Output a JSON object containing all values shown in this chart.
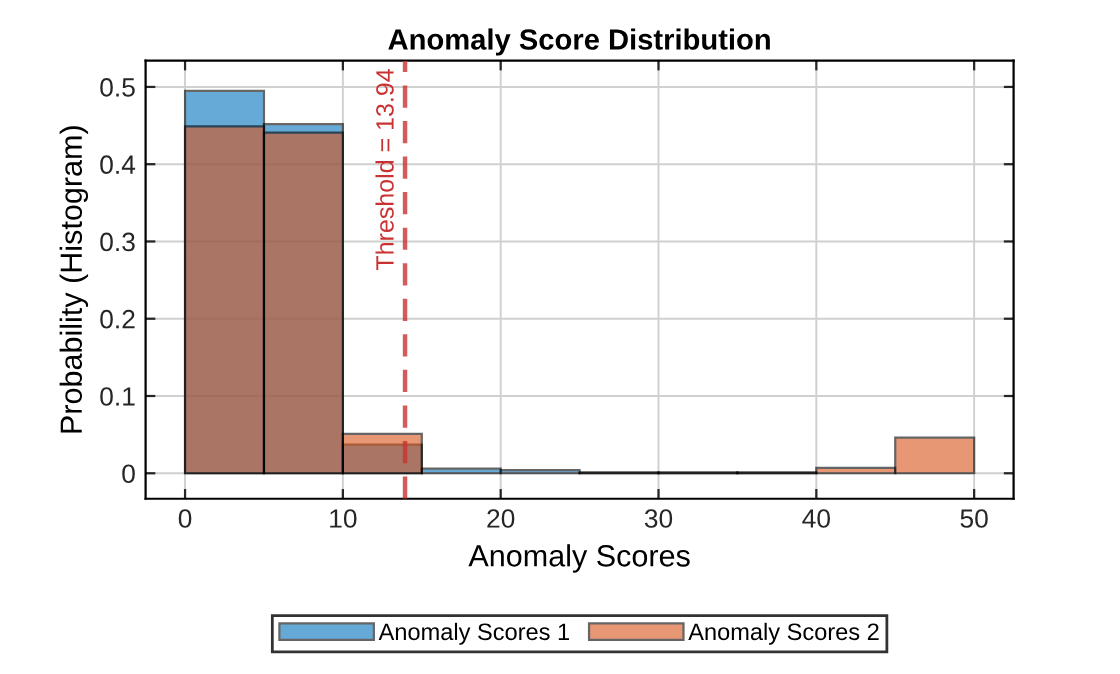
{
  "chart_data": {
    "type": "histogram",
    "title": "Anomaly Score Distribution",
    "xlabel": "Anomaly Scores",
    "ylabel": "Probability (Histogram)",
    "bins": [
      0,
      5,
      10,
      15,
      20,
      25,
      30,
      35,
      40,
      45,
      50
    ],
    "series": [
      {
        "name": "Anomaly Scores 1",
        "color": "#0072bd",
        "values": [
          0.495,
          0.452,
          0.037,
          0.006,
          0.004,
          0.001,
          0.001,
          0.001,
          0,
          0
        ]
      },
      {
        "name": "Anomaly Scores 2",
        "color": "#d95319",
        "values": [
          0.449,
          0.441,
          0.051,
          0,
          0,
          0.001,
          0.001,
          0.001,
          0.007,
          0.046
        ]
      }
    ],
    "xlim": [
      -2.5,
      52.5
    ],
    "xticks": [
      0,
      10,
      20,
      30,
      40,
      50
    ],
    "ylim": [
      -0.033,
      0.534
    ],
    "yticks": [
      0,
      0.1,
      0.2,
      0.3,
      0.4,
      0.5
    ],
    "ref_lines": [
      {
        "axis": "x",
        "value": 13.94,
        "label": "Threshold = 13.94",
        "color": "#c83232",
        "line_style": "dashed"
      }
    ],
    "grid": true,
    "legend": "bottom"
  }
}
